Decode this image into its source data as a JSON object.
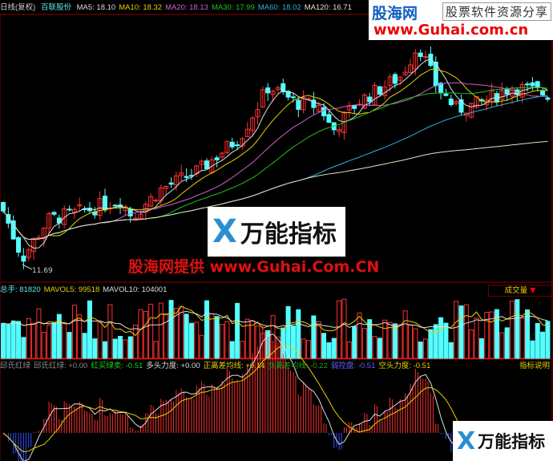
{
  "header": {
    "period": "日线(复权)",
    "stock": "百联股份",
    "ma": [
      {
        "label": "MA5: 18.10",
        "color": "#dddddd"
      },
      {
        "label": "MA10: 18.32",
        "color": "#e8d000"
      },
      {
        "label": "MA20: 18.13",
        "color": "#d060d0"
      },
      {
        "label": "MA30: 17.99",
        "color": "#20c020"
      },
      {
        "label": "MA60: 18.02",
        "color": "#30b0e0"
      },
      {
        "label": "MA120: 16.71",
        "color": "#e8e0c0"
      }
    ]
  },
  "price_panel": {
    "low_marker": "11.69"
  },
  "watermark": {
    "site": "股海网",
    "slogan": "股票软件资源分享",
    "url": "www.Guhai.com.cn",
    "center_text": "股海网提供 www.Guhai.Com.CN",
    "logo_text": "万能指标"
  },
  "volume_panel": {
    "items": [
      {
        "label": "总手: 81820",
        "color": "#60e0e0"
      },
      {
        "label": "MAVOL5: 99518",
        "color": "#e8d000"
      },
      {
        "label": "MAVOL10: 104001",
        "color": "#dddddd"
      }
    ],
    "selector": "成交量"
  },
  "indicator_panel": {
    "items": [
      {
        "label": "邱氏红绿",
        "color": "#888888"
      },
      {
        "label": "邱氏红绿: +0.00",
        "color": "#888888"
      },
      {
        "label": "红买绿卖: -0.51",
        "color": "#20d020"
      },
      {
        "label": "多头力度: +0.00",
        "color": "#dddddd"
      },
      {
        "label": "正离差均线: +0.14",
        "color": "#e8d000"
      },
      {
        "label": "负离差均线: -0.22",
        "color": "#20a020"
      },
      {
        "label": "弱控盘: -0.51",
        "color": "#6060ff"
      },
      {
        "label": "空头力度: -0.51",
        "color": "#e8d000"
      }
    ],
    "help": "指标说明"
  },
  "colors": {
    "up": "#ff3030",
    "down": "#54ffff",
    "border": "#8b0000"
  }
}
